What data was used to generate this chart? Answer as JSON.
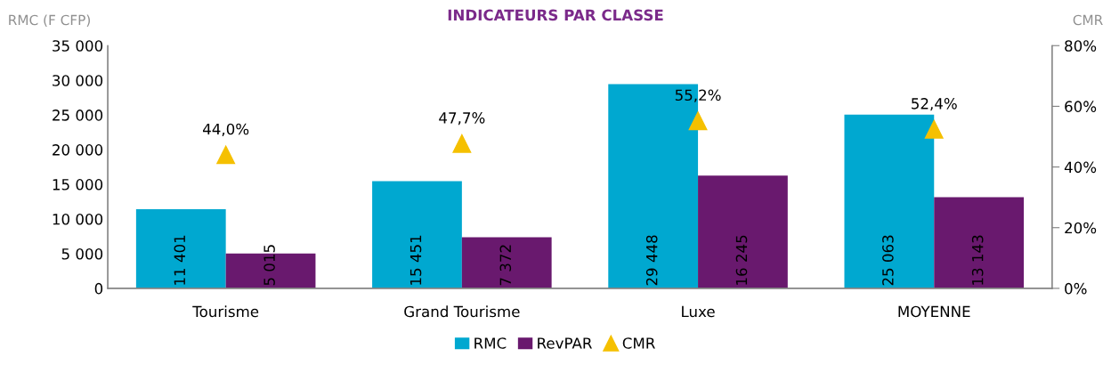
{
  "chart_data": {
    "type": "bar",
    "title": "INDICATEURS PAR CLASSE",
    "ylabel": "RMC (F CFP)",
    "y2label": "CMR",
    "categories": [
      "Tourisme",
      "Grand Tourisme",
      "Luxe",
      "MOYENNE"
    ],
    "series": [
      {
        "name": "RMC",
        "color": "#00a8d0",
        "values": [
          11401,
          15451,
          29448,
          25063
        ],
        "value_labels": [
          "11 401",
          "15 451",
          "29 448",
          "25 063"
        ]
      },
      {
        "name": "RevPAR",
        "color": "#69196e",
        "values": [
          5015,
          7372,
          16245,
          13143
        ],
        "value_labels": [
          "5 015",
          "7 372",
          "16 245",
          "13 143"
        ]
      },
      {
        "name": "CMR",
        "type": "scatter",
        "axis": "y2",
        "marker": "triangle",
        "color": "#f5c000",
        "values": [
          44.0,
          47.7,
          55.2,
          52.4
        ],
        "value_labels": [
          "44,0%",
          "47,7%",
          "55,2%",
          "52,4%"
        ]
      }
    ],
    "ylim": [
      0,
      35000
    ],
    "yticks": [
      {
        "value": 0,
        "label": "0"
      },
      {
        "value": 5000,
        "label": "5 000"
      },
      {
        "value": 10000,
        "label": "10 000"
      },
      {
        "value": 15000,
        "label": "15 000"
      },
      {
        "value": 20000,
        "label": "20 000"
      },
      {
        "value": 25000,
        "label": "25 000"
      },
      {
        "value": 30000,
        "label": "30 000"
      },
      {
        "value": 35000,
        "label": "35 000"
      }
    ],
    "y2lim": [
      0,
      80
    ],
    "y2ticks": [
      {
        "value": 0,
        "label": "0%"
      },
      {
        "value": 20,
        "label": "20%"
      },
      {
        "value": 40,
        "label": "40%"
      },
      {
        "value": 60,
        "label": "60%"
      },
      {
        "value": 80,
        "label": "80%"
      }
    ],
    "grid": false,
    "legend": "bottom"
  }
}
